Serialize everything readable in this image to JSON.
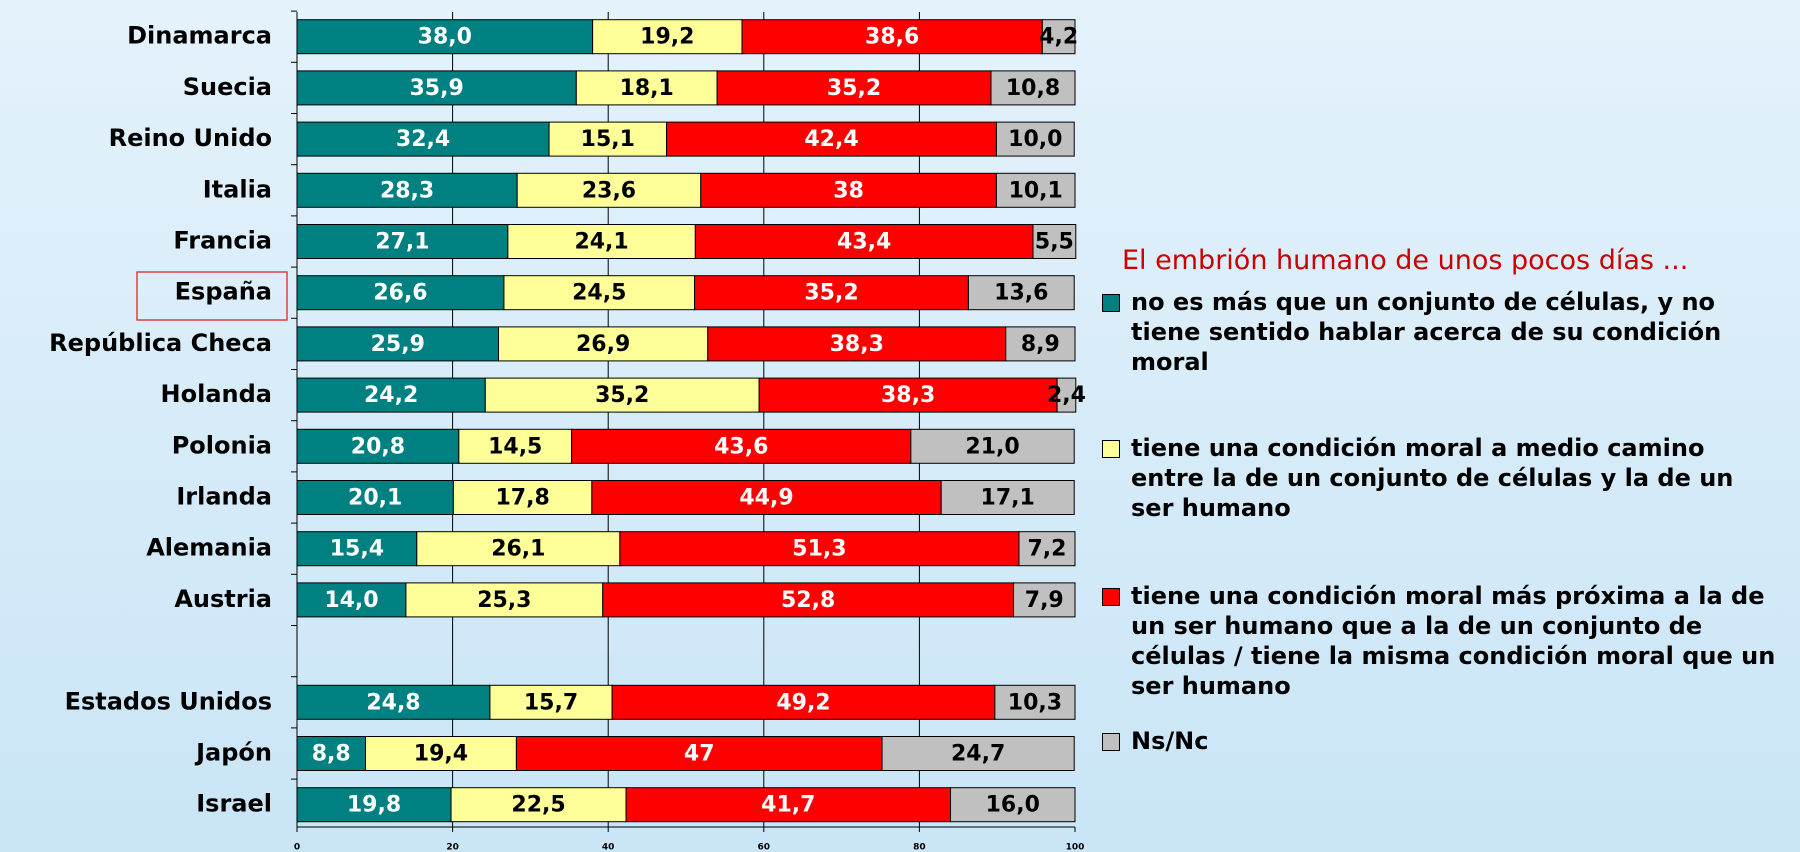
{
  "chart_data": {
    "type": "stacked_barh",
    "legend_title": "El embrión humano de unos pocos días ...",
    "categories": [
      "Dinamarca",
      "Suecia",
      "Reino Unido",
      "Italia",
      "Francia",
      "España",
      "República Checa",
      "Holanda",
      "Polonia",
      "Irlanda",
      "Alemania",
      "Austria",
      null,
      "Estados Unidos",
      "Japón",
      "Israel"
    ],
    "series": [
      {
        "name": "no es más que un conjunto de células, y no tiene sentido hablar acerca de su condición moral",
        "color": "#008080",
        "label_color": "#ffffff",
        "values": [
          38.0,
          35.9,
          32.4,
          28.3,
          27.1,
          26.6,
          25.9,
          24.2,
          20.8,
          20.1,
          15.4,
          14.0,
          null,
          24.8,
          8.8,
          19.8
        ],
        "value_labels": [
          "38,0",
          "35,9",
          "32,4",
          "28,3",
          "27,1",
          "26,6",
          "25,9",
          "24,2",
          "20,8",
          "20,1",
          "15,4",
          "14,0",
          null,
          "24,8",
          "8,8",
          "19,8"
        ]
      },
      {
        "name": "tiene una condición moral a medio camino entre la de un conjunto de células y la de un ser humano",
        "color": "#ffff99",
        "label_color": "#000000",
        "values": [
          19.2,
          18.1,
          15.1,
          23.6,
          24.1,
          24.5,
          26.9,
          35.2,
          14.5,
          17.8,
          26.1,
          25.3,
          null,
          15.7,
          19.4,
          22.5
        ],
        "value_labels": [
          "19,2",
          "18,1",
          "15,1",
          "23,6",
          "24,1",
          "24,5",
          "26,9",
          "35,2",
          "14,5",
          "17,8",
          "26,1",
          "25,3",
          null,
          "15,7",
          "19,4",
          "22,5"
        ]
      },
      {
        "name": "tiene una condición moral más próxima a la de un ser humano que a la de un conjunto de células / tiene la misma condición moral que un ser humano",
        "color": "#ff0000",
        "label_color": "#ffffff",
        "values": [
          38.6,
          35.2,
          42.4,
          38,
          43.4,
          35.2,
          38.3,
          38.3,
          43.6,
          44.9,
          51.3,
          52.8,
          null,
          49.2,
          47,
          41.7
        ],
        "value_labels": [
          "38,6",
          "35,2",
          "42,4",
          "38",
          "43,4",
          "35,2",
          "38,3",
          "38,3",
          "43,6",
          "44,9",
          "51,3",
          "52,8",
          null,
          "49,2",
          "47",
          "41,7"
        ]
      },
      {
        "name": "Ns/Nc",
        "color": "#c0c0c0",
        "label_color": "#000000",
        "values": [
          4.2,
          10.8,
          10.0,
          10.1,
          5.5,
          13.6,
          8.9,
          2.4,
          21.0,
          17.1,
          7.2,
          7.9,
          null,
          10.3,
          24.7,
          16.0
        ],
        "value_labels": [
          "4,2",
          "10,8",
          "10,0",
          "10,1",
          "5,5",
          "13,6",
          "8,9",
          "2,4",
          "21,0",
          "17,1",
          "7,2",
          "7,9",
          null,
          "10,3",
          "24,7",
          "16,0"
        ]
      }
    ],
    "xlim": [
      0,
      100
    ],
    "xticks": [
      0,
      20,
      40,
      60,
      80,
      100
    ],
    "grid": true
  }
}
